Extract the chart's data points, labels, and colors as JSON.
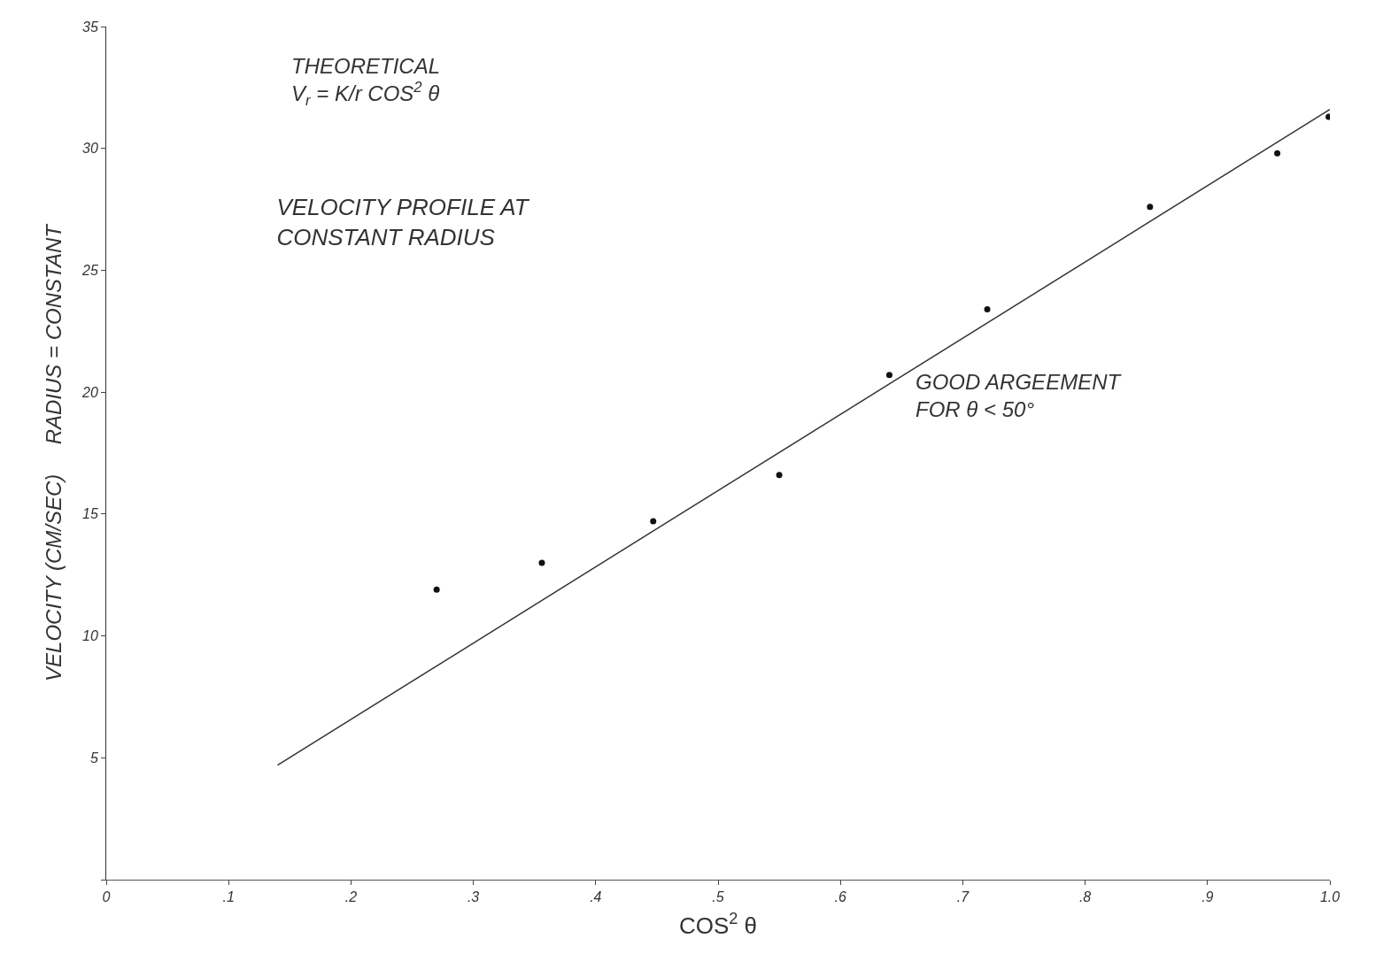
{
  "chart_data": {
    "type": "scatter",
    "title": "VELOCITY PROFILE AT\nCONSTANT RADIUS",
    "xlabel": "COS$^{2}$ θ",
    "ylabel": "VELOCITY (CM/SEC)     RADIUS = CONSTANT",
    "annotations": [
      "THEORETICAL\nV$_{r}$ = K/r COS$^{2}$ θ",
      "GOOD ARGEEMENT\nFOR θ < 50°"
    ],
    "series": [
      {
        "color": "#111111",
        "marker": "circle",
        "x": [
          0.27,
          0.356,
          0.447,
          0.55,
          0.64,
          0.72,
          0.853,
          0.957,
          0.999
        ],
        "values": [
          11.9,
          13.0,
          14.7,
          16.6,
          20.7,
          23.4,
          27.6,
          29.8,
          31.3
        ]
      },
      {
        "type": "line",
        "color": "#333333",
        "line_style": "solid",
        "x": [
          0.14,
          1.0
        ],
        "values": [
          4.7,
          31.6
        ]
      }
    ],
    "xlim": [
      0,
      1.0
    ],
    "xticks": [
      0,
      {
        "value": 0.1,
        "label": ".1"
      },
      {
        "value": 0.2,
        "label": ".2"
      },
      {
        "value": 0.3,
        "label": ".3"
      },
      {
        "value": 0.4,
        "label": ".4"
      },
      {
        "value": 0.5,
        "label": ".5"
      },
      {
        "value": 0.6,
        "label": ".6"
      },
      {
        "value": 0.7,
        "label": ".7"
      },
      {
        "value": 0.8,
        "label": ".8"
      },
      {
        "value": 0.9,
        "label": ".9"
      },
      {
        "value": 1.0,
        "label": "1.0"
      }
    ],
    "ylim": [
      0,
      35
    ],
    "yticks": [
      {
        "value": 0,
        "label": null
      },
      5,
      10,
      15,
      20,
      25,
      30,
      35
    ]
  }
}
